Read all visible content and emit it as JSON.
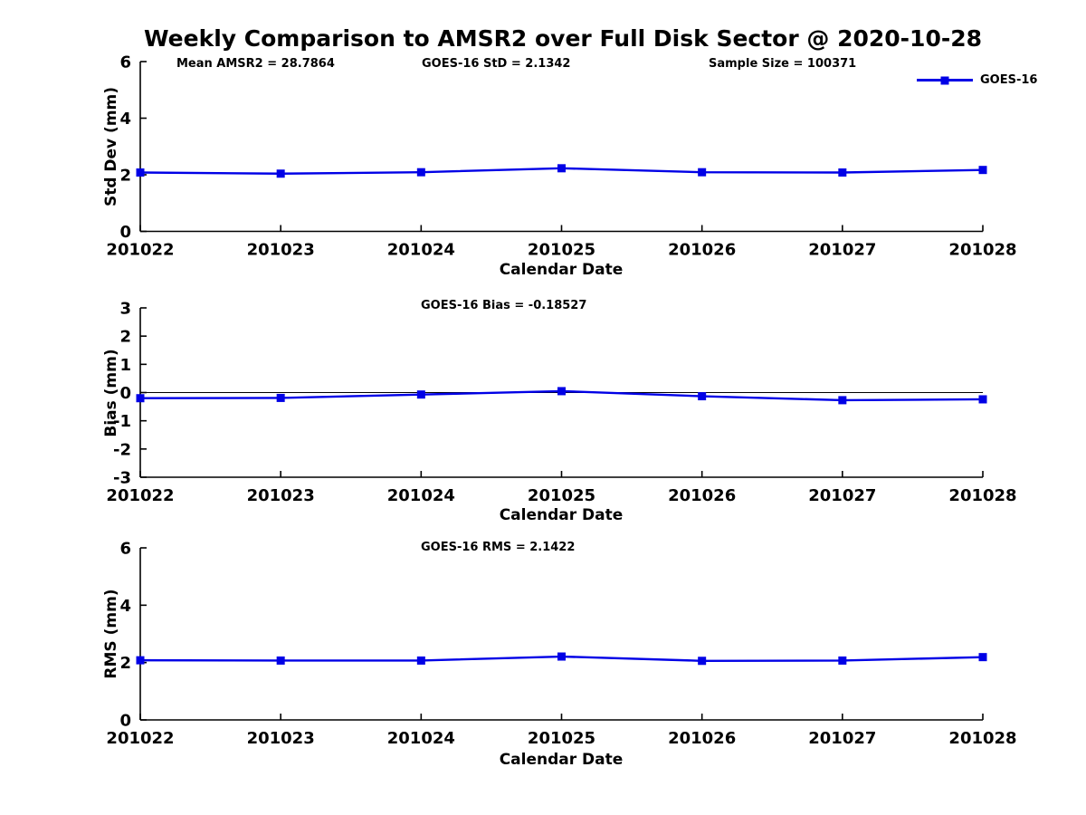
{
  "title": "Weekly Comparison to AMSR2 over Full Disk Sector @ 2020-10-28",
  "legend": {
    "label": "GOES-16"
  },
  "colors": {
    "line": "#0000E6",
    "axis": "#000000",
    "background": "#FFFFFF"
  },
  "chart_data": [
    {
      "type": "line",
      "title": "",
      "annotations": [
        "Mean AMSR2 = 28.7864",
        "GOES-16 StD = 2.1342",
        "Sample Size = 100371"
      ],
      "xlabel": "Calendar Date",
      "ylabel": "Std Dev (mm)",
      "categories": [
        "201022",
        "201023",
        "201024",
        "201025",
        "201026",
        "201027",
        "201028"
      ],
      "series": [
        {
          "name": "GOES-16",
          "values": [
            2.08,
            2.04,
            2.09,
            2.23,
            2.09,
            2.08,
            2.17
          ]
        }
      ],
      "ylim": [
        0,
        6
      ],
      "yticks": [
        0,
        2,
        4,
        6
      ],
      "zero_line": false,
      "grid": false,
      "legend_position": "top-right"
    },
    {
      "type": "line",
      "title": "GOES-16 Bias  = -0.18527",
      "annotations": [],
      "xlabel": "Calendar Date",
      "ylabel": "Bias (mm)",
      "categories": [
        "201022",
        "201023",
        "201024",
        "201025",
        "201026",
        "201027",
        "201028"
      ],
      "series": [
        {
          "name": "GOES-16",
          "values": [
            -0.2,
            -0.19,
            -0.07,
            0.05,
            -0.13,
            -0.27,
            -0.24
          ]
        }
      ],
      "ylim": [
        -3,
        3
      ],
      "yticks": [
        3,
        2,
        1,
        0,
        -1,
        -2,
        -3
      ],
      "zero_line": true,
      "grid": false,
      "legend_position": "none"
    },
    {
      "type": "line",
      "title": "GOES-16 RMS = 2.1422",
      "annotations": [],
      "xlabel": "Calendar Date",
      "ylabel": "RMS (mm)",
      "categories": [
        "201022",
        "201023",
        "201024",
        "201025",
        "201026",
        "201027",
        "201028"
      ],
      "series": [
        {
          "name": "GOES-16",
          "values": [
            2.08,
            2.07,
            2.07,
            2.21,
            2.06,
            2.07,
            2.19
          ]
        }
      ],
      "ylim": [
        0,
        6
      ],
      "yticks": [
        0,
        2,
        4,
        6
      ],
      "zero_line": false,
      "grid": false,
      "legend_position": "none"
    }
  ]
}
